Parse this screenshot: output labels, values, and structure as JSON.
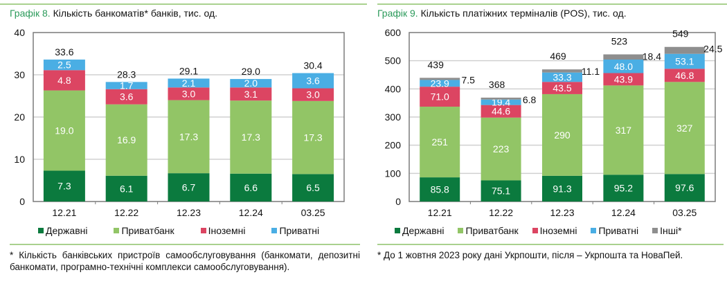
{
  "colors": {
    "state": "#0b7a3e",
    "privatbank": "#92c566",
    "foreign": "#dc4562",
    "private": "#4aaee4",
    "other": "#8e8e8e",
    "title_accent": "#2a9a5a"
  },
  "charts": [
    {
      "title_num": "Графік 8.",
      "title_text": " Кількість банкоматів* банків, тис. од.",
      "footnote": "* Кількість банківських пристроїв самообслуговування (банкомати, депозитні банкомати, програмно-технічні комплекси самообслуговування).",
      "legend": [
        "Державні",
        "Приватбанк",
        "Іноземні",
        "Приватні"
      ]
    },
    {
      "title_num": "Графік 9.",
      "title_text": " Кількість платіжних терміналів (POS), тис. од.",
      "footnote": "* До 1 жовтня 2023 року дані Укрпошти, після – Укрпошта та НоваПей.",
      "legend": [
        "Державні",
        "Приватбанк",
        "Іноземні",
        "Приватні",
        "Інші*"
      ]
    }
  ],
  "chart_data": [
    {
      "type": "bar",
      "stacked": true,
      "title": "Кількість банкоматів* банків, тис. од.",
      "categories": [
        "12.21",
        "12.22",
        "12.23",
        "12.24",
        "03.25"
      ],
      "ylim": [
        0,
        40
      ],
      "yticks": [
        0,
        10,
        20,
        30,
        40
      ],
      "grid": true,
      "legend_position": "bottom",
      "series": [
        {
          "name": "Державні",
          "key": "state",
          "values": [
            7.3,
            6.1,
            6.7,
            6.6,
            6.5
          ],
          "labels": [
            "7.3",
            "6.1",
            "6.7",
            "6.6",
            "6.5"
          ]
        },
        {
          "name": "Приватбанк",
          "key": "privatbank",
          "values": [
            19.0,
            16.9,
            17.3,
            17.3,
            17.3
          ],
          "labels": [
            "19.0",
            "16.9",
            "17.3",
            "17.3",
            "17.3"
          ]
        },
        {
          "name": "Іноземні",
          "key": "foreign",
          "values": [
            4.8,
            3.6,
            3.0,
            3.1,
            3.0
          ],
          "labels": [
            "4.8",
            "3.6",
            "3.0",
            "3.1",
            "3.0"
          ]
        },
        {
          "name": "Приватні",
          "key": "private",
          "values": [
            2.5,
            1.7,
            2.1,
            2.0,
            3.6
          ],
          "labels": [
            "2.5",
            "1.7",
            "2.1",
            "2.0",
            "3.6"
          ]
        }
      ],
      "totals": [
        "33.6",
        "28.3",
        "29.1",
        "29.0",
        "30.4"
      ]
    },
    {
      "type": "bar",
      "stacked": true,
      "title": "Кількість платіжних терміналів (POS), тис. од.",
      "categories": [
        "12.21",
        "12.22",
        "12.23",
        "12.24",
        "03.25"
      ],
      "ylim": [
        0,
        600
      ],
      "yticks": [
        0,
        100,
        200,
        300,
        400,
        500,
        600
      ],
      "grid": true,
      "legend_position": "bottom",
      "series": [
        {
          "name": "Державні",
          "key": "state",
          "values": [
            85.8,
            75.1,
            91.3,
            95.2,
            97.6
          ],
          "labels": [
            "85.8",
            "75.1",
            "91.3",
            "95.2",
            "97.6"
          ]
        },
        {
          "name": "Приватбанк",
          "key": "privatbank",
          "values": [
            251,
            223,
            290,
            317,
            327
          ],
          "labels": [
            "251",
            "223",
            "290",
            "317",
            "327"
          ]
        },
        {
          "name": "Іноземні",
          "key": "foreign",
          "values": [
            71.0,
            44.6,
            43.5,
            43.9,
            46.8
          ],
          "labels": [
            "71.0",
            "44.6",
            "43.5",
            "43.9",
            "46.8"
          ]
        },
        {
          "name": "Приватні",
          "key": "private",
          "values": [
            23.9,
            19.4,
            33.3,
            48.0,
            53.1
          ],
          "labels": [
            "23.9",
            "19.4",
            "33.3",
            "48.0",
            "53.1"
          ]
        },
        {
          "name": "Інші*",
          "key": "other",
          "values": [
            7.5,
            6.8,
            11.1,
            18.4,
            24.5
          ],
          "labels": [
            "7.5",
            "6.8",
            "11.1",
            "18.4",
            "24.5"
          ]
        }
      ],
      "totals": [
        "439",
        "368",
        "469",
        "523",
        "549"
      ]
    }
  ]
}
